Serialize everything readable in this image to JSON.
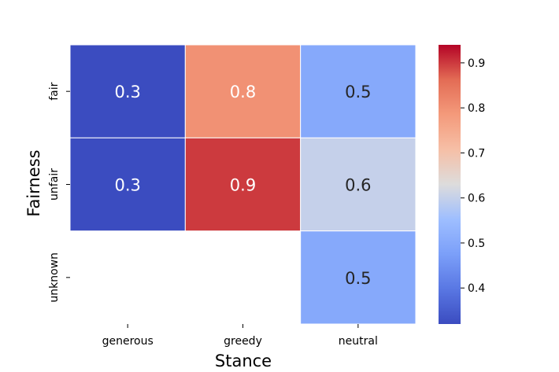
{
  "chart_data": {
    "type": "heatmap",
    "xlabel": "Stance",
    "ylabel": "Fairness",
    "x_categories": [
      "generous",
      "greedy",
      "neutral"
    ],
    "y_categories": [
      "fair",
      "unfair",
      "unknown"
    ],
    "values": [
      [
        0.3,
        0.8,
        0.5
      ],
      [
        0.3,
        0.9,
        0.6
      ],
      [
        null,
        null,
        0.5
      ]
    ],
    "cell_labels": [
      [
        "0.3",
        "0.8",
        "0.5"
      ],
      [
        "0.3",
        "0.9",
        "0.6"
      ],
      [
        "",
        "",
        "0.5"
      ]
    ],
    "colormap": "coolwarm",
    "colorbar": {
      "range": [
        0.32,
        0.94
      ],
      "ticks": [
        0.4,
        0.5,
        0.6,
        0.7,
        0.8,
        0.9
      ],
      "tick_labels": [
        "0.4",
        "0.5",
        "0.6",
        "0.7",
        "0.8",
        "0.9"
      ]
    },
    "grid_line_color": "#ffffff"
  }
}
